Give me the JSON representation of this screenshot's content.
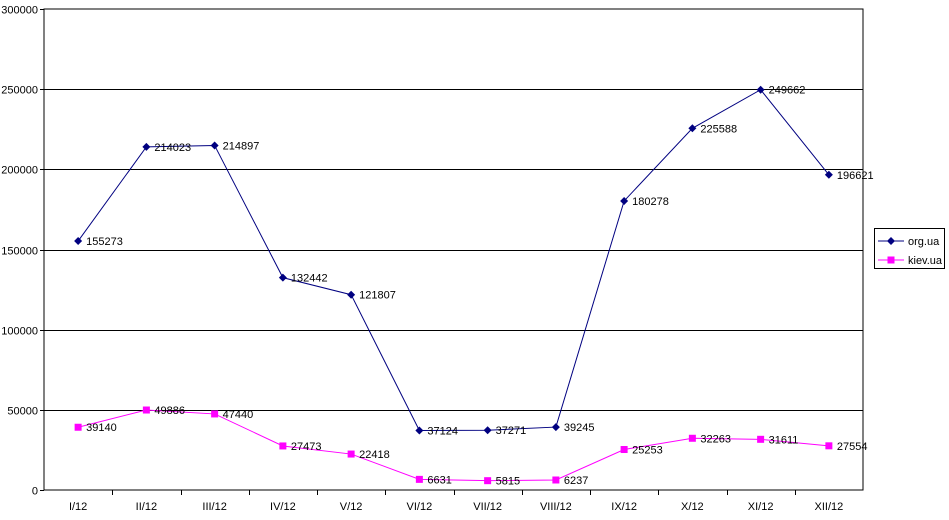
{
  "chart_data": {
    "type": "line",
    "title": "",
    "xlabel": "",
    "ylabel": "",
    "ylim": [
      0,
      300000
    ],
    "yticks": [
      0,
      50000,
      100000,
      150000,
      200000,
      250000,
      300000
    ],
    "grid": true,
    "legend_position": "right",
    "categories": [
      "I/12",
      "II/12",
      "III/12",
      "IV/12",
      "V/12",
      "VI/12",
      "VII/12",
      "VIII/12",
      "IX/12",
      "X/12",
      "XI/12",
      "XII/12"
    ],
    "series": [
      {
        "name": "org.ua",
        "color": "#000080",
        "marker": "diamond",
        "values": [
          155273,
          214023,
          214897,
          132442,
          121807,
          37124,
          37271,
          39245,
          180278,
          225588,
          249662,
          196621
        ]
      },
      {
        "name": "kiev.ua",
        "color": "#ff00ff",
        "marker": "square",
        "values": [
          39140,
          49886,
          47440,
          27473,
          22418,
          6631,
          5815,
          6237,
          25253,
          32263,
          31611,
          27554
        ]
      }
    ]
  }
}
